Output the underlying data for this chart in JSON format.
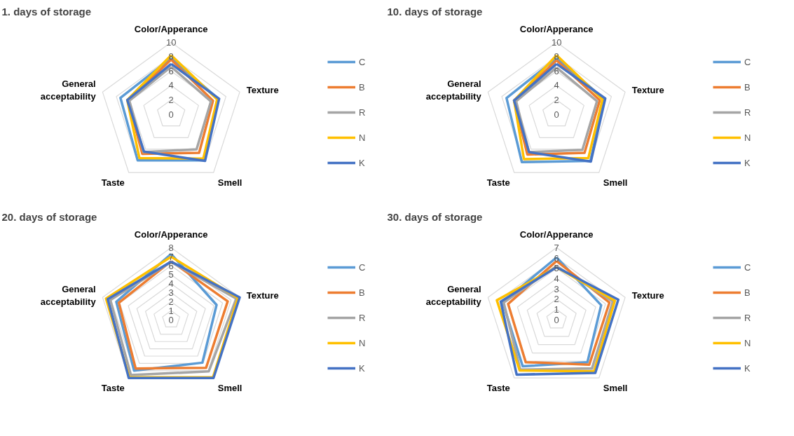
{
  "chart_data": [
    {
      "type": "radar",
      "title": "1. days of storage",
      "categories": [
        "Color/Apperance",
        "Texture",
        "Smell",
        "Taste",
        "General acceptability"
      ],
      "ylim": [
        0,
        10
      ],
      "yticks": [
        0,
        2,
        4,
        6,
        8,
        10
      ],
      "grid": true,
      "legend": "right",
      "series": [
        {
          "name": "C",
          "color": "#5b9bd5",
          "values": [
            7.8,
            6.9,
            7.9,
            7.9,
            7.4
          ]
        },
        {
          "name": "B",
          "color": "#ed7d31",
          "values": [
            7.6,
            6.1,
            6.6,
            6.8,
            6.3
          ]
        },
        {
          "name": "R",
          "color": "#a5a5a5",
          "values": [
            6.6,
            5.8,
            6.0,
            6.5,
            6.1
          ]
        },
        {
          "name": "N",
          "color": "#ffc000",
          "values": [
            8.2,
            6.7,
            7.6,
            7.5,
            6.4
          ]
        },
        {
          "name": "K",
          "color": "#4472c4",
          "values": [
            7.0,
            7.0,
            8.0,
            6.4,
            6.4
          ]
        }
      ]
    },
    {
      "type": "radar",
      "title": "10. days of storage",
      "categories": [
        "Color/Apperance",
        "Texture",
        "Smell",
        "Taste",
        "General acceptability"
      ],
      "ylim": [
        0,
        10
      ],
      "yticks": [
        0,
        2,
        4,
        6,
        8,
        10
      ],
      "grid": true,
      "legend": "right",
      "series": [
        {
          "name": "C",
          "color": "#5b9bd5",
          "values": [
            7.8,
            6.9,
            8.0,
            8.2,
            7.3
          ]
        },
        {
          "name": "B",
          "color": "#ed7d31",
          "values": [
            7.5,
            6.3,
            6.6,
            6.9,
            6.2
          ]
        },
        {
          "name": "R",
          "color": "#a5a5a5",
          "values": [
            6.5,
            5.9,
            6.1,
            6.5,
            5.9
          ]
        },
        {
          "name": "N",
          "color": "#ffc000",
          "values": [
            8.2,
            6.7,
            7.5,
            7.7,
            6.2
          ]
        },
        {
          "name": "K",
          "color": "#4472c4",
          "values": [
            7.0,
            7.1,
            8.1,
            6.5,
            6.2
          ]
        }
      ]
    },
    {
      "type": "radar",
      "title": "20. days of storage",
      "categories": [
        "Color/Apperance",
        "Texture",
        "Smell",
        "Taste",
        "General acceptability"
      ],
      "ylim": [
        0,
        8
      ],
      "yticks": [
        0,
        1,
        2,
        3,
        4,
        5,
        6,
        7,
        8
      ],
      "grid": true,
      "legend": "right",
      "series": [
        {
          "name": "C",
          "color": "#5b9bd5",
          "values": [
            7.3,
            5.3,
            5.9,
            7.0,
            6.4
          ]
        },
        {
          "name": "B",
          "color": "#ed7d31",
          "values": [
            6.5,
            6.6,
            6.6,
            6.7,
            6.1
          ]
        },
        {
          "name": "R",
          "color": "#a5a5a5",
          "values": [
            6.4,
            7.6,
            7.1,
            7.6,
            7.1
          ]
        },
        {
          "name": "N",
          "color": "#ffc000",
          "values": [
            7.0,
            7.8,
            7.9,
            7.9,
            7.6
          ]
        },
        {
          "name": "K",
          "color": "#4472c4",
          "values": [
            6.45,
            8.0,
            8.0,
            8.0,
            7.4
          ]
        }
      ]
    },
    {
      "type": "radar",
      "title": "30. days of storage",
      "categories": [
        "Color/Apperance",
        "Texture",
        "Smell",
        "Taste",
        "General acceptability"
      ],
      "ylim": [
        0,
        7
      ],
      "yticks": [
        0,
        1,
        2,
        3,
        4,
        5,
        6,
        7
      ],
      "grid": true,
      "legend": "right",
      "series": [
        {
          "name": "C",
          "color": "#5b9bd5",
          "values": [
            6.05,
            4.55,
            5.1,
            5.6,
            5.5
          ]
        },
        {
          "name": "B",
          "color": "#ed7d31",
          "values": [
            5.7,
            5.4,
            5.4,
            5.1,
            4.95
          ]
        },
        {
          "name": "R",
          "color": "#a5a5a5",
          "values": [
            5.2,
            5.75,
            5.85,
            6.0,
            5.4
          ]
        },
        {
          "name": "N",
          "color": "#ffc000",
          "values": [
            5.1,
            5.95,
            6.2,
            6.1,
            6.1
          ]
        },
        {
          "name": "K",
          "color": "#4472c4",
          "values": [
            5.1,
            6.3,
            6.4,
            6.6,
            5.7
          ]
        }
      ]
    }
  ]
}
